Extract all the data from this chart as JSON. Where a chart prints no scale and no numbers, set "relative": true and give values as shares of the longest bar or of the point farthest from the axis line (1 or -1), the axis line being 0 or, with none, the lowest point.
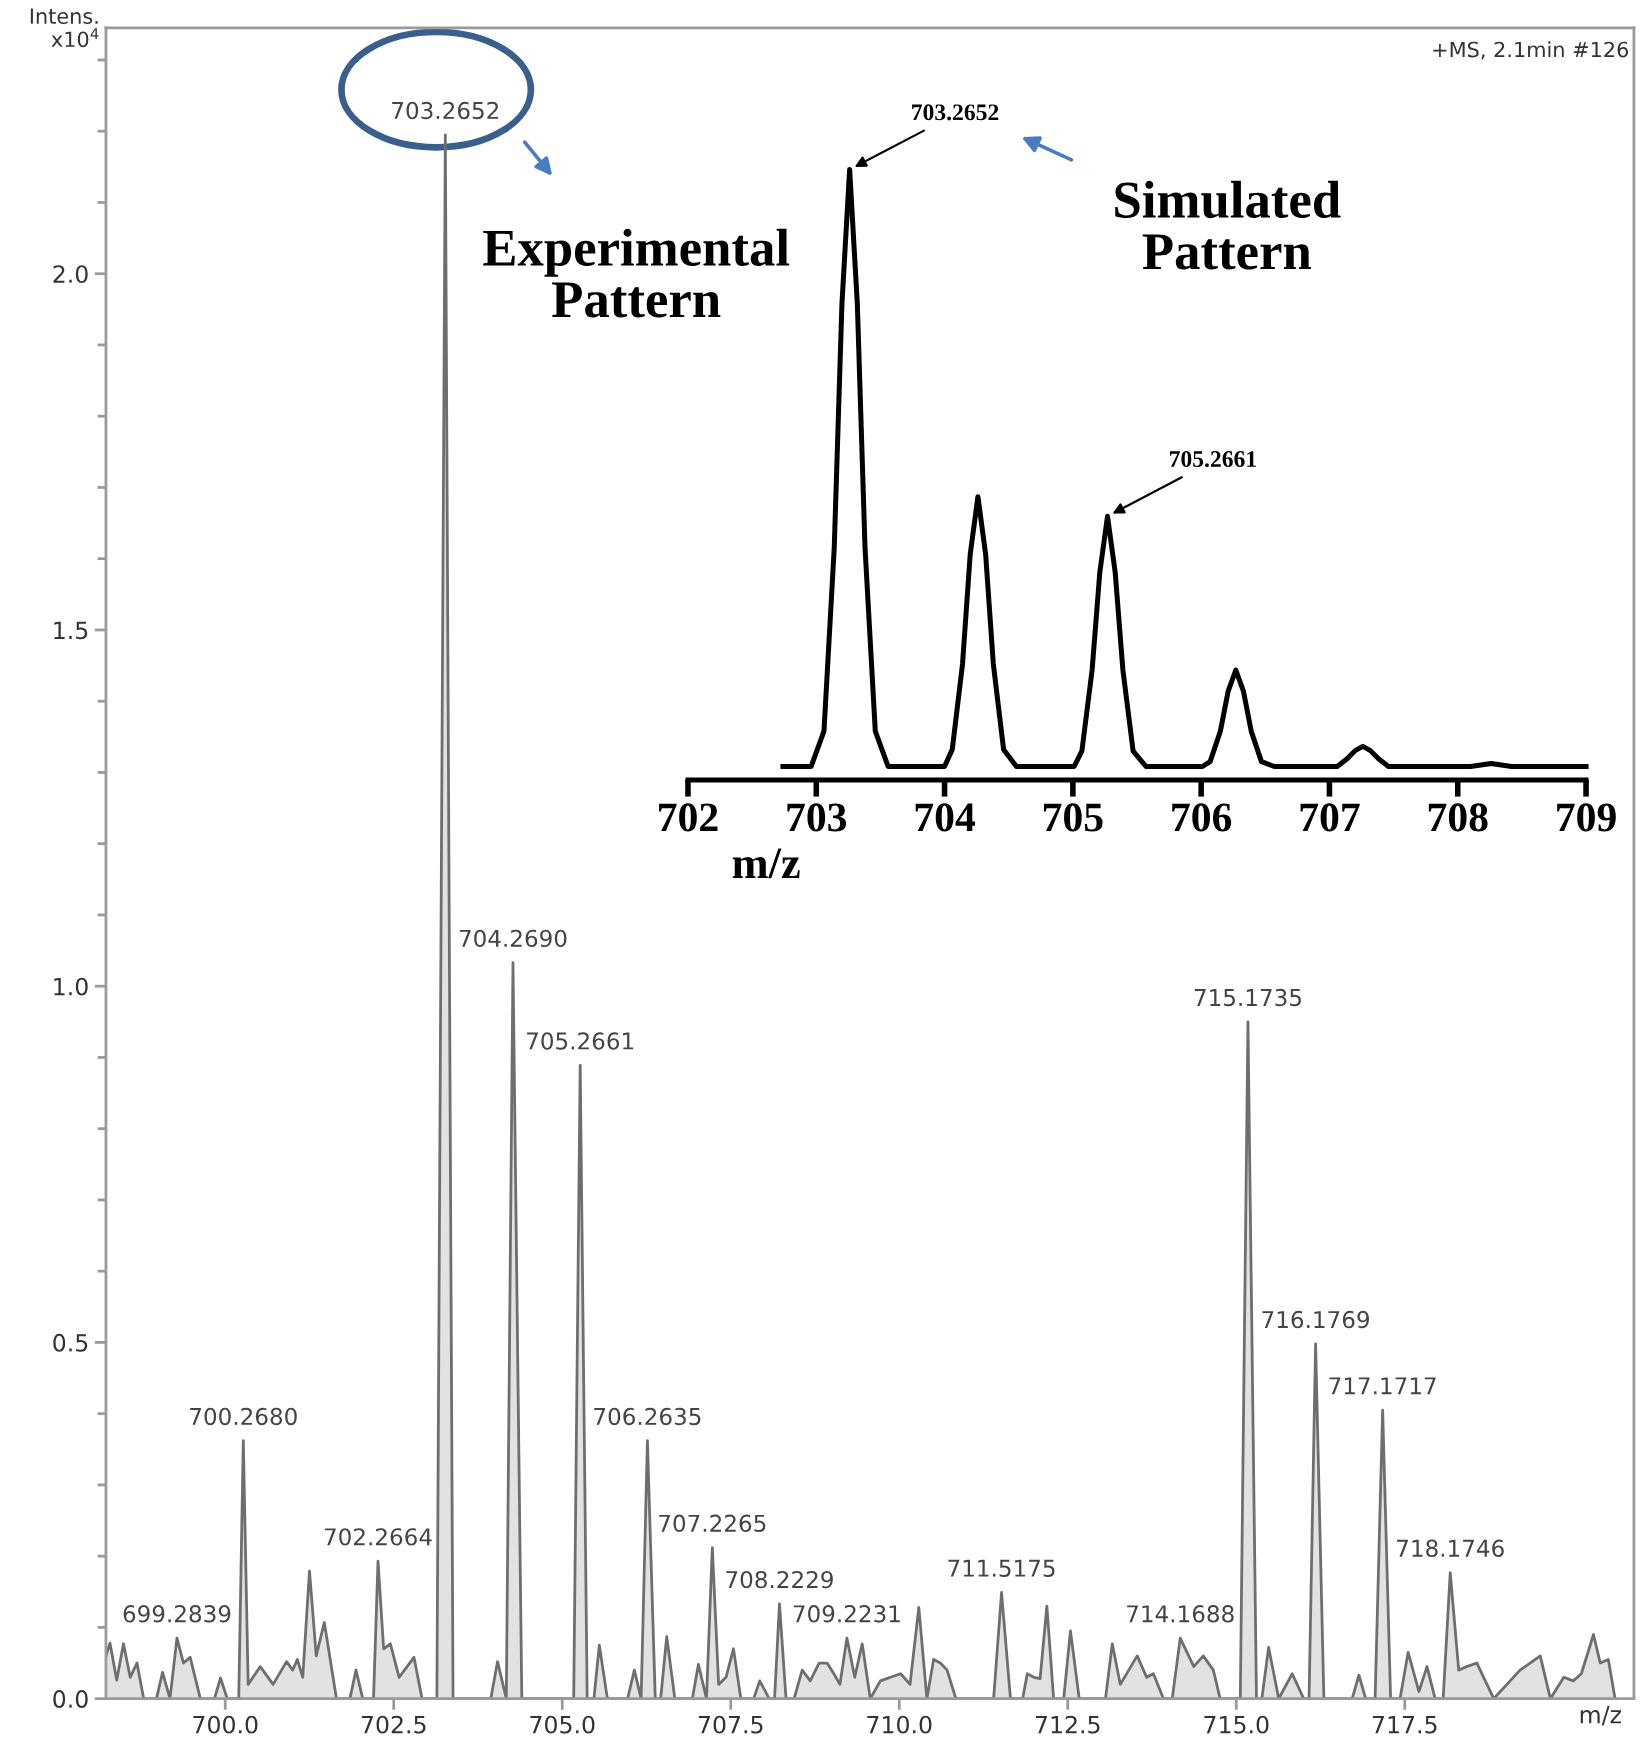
{
  "chart_data": [
    {
      "type": "area",
      "xlabel": "m/z",
      "ylabel": "Intens.\nx10$^{4}$",
      "xlim": [
        698.23,
        720.9
      ],
      "ylim": [
        0,
        2.345
      ],
      "xticks": [
        {
          "value": 700.0,
          "label": "700.0"
        },
        {
          "value": 702.5,
          "label": "702.5"
        },
        {
          "value": 705.0,
          "label": "705.0"
        },
        {
          "value": 707.5,
          "label": "707.5"
        },
        {
          "value": 710.0,
          "label": "710.0"
        },
        {
          "value": 712.5,
          "label": "712.5"
        },
        {
          "value": 715.0,
          "label": "715.0"
        },
        {
          "value": 717.5,
          "label": "717.5"
        }
      ],
      "yticks": [
        {
          "value": 0.0,
          "label": "0.0"
        },
        {
          "value": 0.1,
          "label": null
        },
        {
          "value": 0.2,
          "label": null
        },
        {
          "value": 0.3,
          "label": null
        },
        {
          "value": 0.4,
          "label": null
        },
        {
          "value": 0.5,
          "label": "0.5"
        },
        {
          "value": 0.6,
          "label": null
        },
        {
          "value": 0.7,
          "label": null
        },
        {
          "value": 0.8,
          "label": null
        },
        {
          "value": 0.9,
          "label": null
        },
        {
          "value": 1.0,
          "label": "1.0"
        },
        {
          "value": 1.1,
          "label": null
        },
        {
          "value": 1.2,
          "label": null
        },
        {
          "value": 1.3,
          "label": null
        },
        {
          "value": 1.4,
          "label": null
        },
        {
          "value": 1.5,
          "label": "1.5"
        },
        {
          "value": 1.6,
          "label": null
        },
        {
          "value": 1.7,
          "label": null
        },
        {
          "value": 1.8,
          "label": null
        },
        {
          "value": 1.9,
          "label": null
        },
        {
          "value": 2.0,
          "label": "2.0"
        },
        {
          "value": 2.1,
          "label": null
        },
        {
          "value": 2.2,
          "label": null
        },
        {
          "value": 2.3,
          "label": null
        }
      ],
      "series": [
        {
          "color": "#6e6e6e",
          "x": [
            698.23,
            698.29,
            698.39,
            698.49,
            698.59,
            698.69,
            698.79,
            698.98,
            699.07,
            699.18,
            699.2839,
            699.38,
            699.48,
            699.63,
            699.84,
            699.93,
            700.03,
            700.2,
            700.268,
            700.34,
            700.52,
            700.71,
            700.91,
            701.0,
            701.07,
            701.15,
            701.25,
            701.35,
            701.47,
            701.65,
            701.85,
            701.94,
            702.04,
            702.2,
            702.2664,
            702.35,
            702.45,
            702.58,
            702.8,
            702.92,
            703.14,
            703.2652,
            703.38,
            703.94,
            704.04,
            704.17,
            704.269,
            704.4,
            705.17,
            705.2661,
            705.37,
            705.47,
            705.55,
            705.67,
            705.97,
            706.07,
            706.17,
            706.2635,
            706.38,
            706.46,
            706.55,
            706.67,
            706.93,
            707.02,
            707.14,
            707.2265,
            707.32,
            707.43,
            707.54,
            707.65,
            707.84,
            707.93,
            708.07,
            708.15,
            708.2229,
            708.32,
            708.44,
            708.56,
            708.68,
            708.81,
            708.93,
            709.03,
            709.12,
            709.2231,
            709.34,
            709.45,
            709.57,
            709.72,
            709.87,
            710.02,
            710.16,
            710.29,
            710.41,
            710.51,
            710.61,
            710.71,
            710.84,
            711.4,
            711.5175,
            711.65,
            711.83,
            711.9,
            712.0,
            712.09,
            712.19,
            712.29,
            712.44,
            712.54,
            712.67,
            713.06,
            713.16,
            713.28,
            713.53,
            713.67,
            713.77,
            713.92,
            714.05,
            714.1688,
            714.37,
            714.51,
            714.66,
            714.76,
            715.06,
            715.1735,
            715.3,
            715.38,
            715.48,
            715.63,
            715.83,
            716.0,
            716.08,
            716.1769,
            716.3,
            716.72,
            716.82,
            716.92,
            717.06,
            717.1717,
            717.29,
            717.43,
            717.55,
            717.71,
            717.83,
            717.95,
            718.07,
            718.1746,
            718.3,
            718.42,
            718.57,
            718.82,
            719.21,
            719.36,
            719.51,
            719.66,
            719.86,
            720.0,
            720.12,
            720.3,
            720.4,
            720.52,
            720.62
          ],
          "values": [
            0.06,
            0.078,
            0.026,
            0.077,
            0.03,
            0.05,
            0,
            0,
            0.037,
            0,
            0.085,
            0.05,
            0.058,
            0,
            0,
            0.029,
            0,
            0,
            0.362,
            0.02,
            0.045,
            0.02,
            0.052,
            0.04,
            0.055,
            0.03,
            0.179,
            0.06,
            0.107,
            0,
            0,
            0.04,
            0,
            0,
            0.193,
            0.07,
            0.077,
            0.03,
            0.058,
            0,
            0,
            2.195,
            0,
            0,
            0.052,
            0,
            1.033,
            0,
            0,
            0.889,
            0,
            0,
            0.075,
            0,
            0,
            0.04,
            0,
            0.362,
            0,
            0,
            0.087,
            0,
            0,
            0.048,
            0,
            0.212,
            0.02,
            0.03,
            0.07,
            0,
            0,
            0.025,
            0,
            0,
            0.133,
            0,
            0,
            0.04,
            0.025,
            0.05,
            0.05,
            0.035,
            0.02,
            0.085,
            0.03,
            0.077,
            0,
            0.025,
            0.03,
            0.035,
            0.02,
            0.128,
            0,
            0.055,
            0.05,
            0.04,
            0,
            0,
            0.149,
            0,
            0,
            0.035,
            0.03,
            0.028,
            0.13,
            0,
            0,
            0.095,
            0,
            0,
            0.077,
            0.02,
            0.06,
            0.03,
            0.035,
            0,
            0,
            0.085,
            0.045,
            0.06,
            0.04,
            0,
            0,
            0.95,
            0,
            0,
            0.072,
            0,
            0.035,
            0,
            0,
            0.498,
            0,
            0,
            0.033,
            0,
            0,
            0.405,
            0,
            0,
            0.065,
            0.01,
            0.045,
            0,
            0,
            0.177,
            0.04,
            0.045,
            0.05,
            0,
            0.04,
            0.05,
            0.06,
            0,
            0.03,
            0.025,
            0.035,
            0.09,
            0.05,
            0.055,
            0
          ]
        }
      ],
      "annotations": [
        {
          "text": "703.2652",
          "x": 703.2652,
          "y": 2.195
        },
        {
          "text": "704.2690",
          "x": 704.269,
          "y": 1.033
        },
        {
          "text": "705.2661",
          "x": 705.2661,
          "y": 0.889
        },
        {
          "text": "700.2680",
          "x": 700.268,
          "y": 0.362
        },
        {
          "text": "702.2664",
          "x": 702.2664,
          "y": 0.193
        },
        {
          "text": "699.2839",
          "x": 699.2839,
          "y": 0.085
        },
        {
          "text": "706.2635",
          "x": 706.2635,
          "y": 0.362
        },
        {
          "text": "707.2265",
          "x": 707.2265,
          "y": 0.212
        },
        {
          "text": "708.2229",
          "x": 708.2229,
          "y": 0.133
        },
        {
          "text": "709.2231",
          "x": 709.2231,
          "y": 0.085
        },
        {
          "text": "711.5175",
          "x": 711.5175,
          "y": 0.149
        },
        {
          "text": "714.1688",
          "x": 714.1688,
          "y": 0.085
        },
        {
          "text": "715.1735",
          "x": 715.1735,
          "y": 0.95
        },
        {
          "text": "716.1769",
          "x": 716.1769,
          "y": 0.498
        },
        {
          "text": "717.1717",
          "x": 717.1717,
          "y": 0.405
        },
        {
          "text": "718.1746",
          "x": 718.1746,
          "y": 0.177
        },
        "+MS, 2.1min #126",
        "Experimental\nPattern"
      ]
    },
    {
      "type": "line",
      "relative": true,
      "xlabel": "m/z",
      "xlim": [
        702,
        709
      ],
      "xticks": [
        702,
        703,
        704,
        705,
        706,
        707,
        708,
        709
      ],
      "series": [
        {
          "color": "#000000",
          "x": [
            702.74,
            702.96,
            703.06,
            703.14,
            703.2,
            703.26,
            703.32,
            703.38,
            703.46,
            703.56,
            704.0,
            704.06,
            704.14,
            704.2,
            704.26,
            704.32,
            704.38,
            704.46,
            704.56,
            705.01,
            705.07,
            705.15,
            705.21,
            705.27,
            705.33,
            705.39,
            705.47,
            705.57,
            706.01,
            706.07,
            706.15,
            706.21,
            706.27,
            706.33,
            706.39,
            706.47,
            706.57,
            707.06,
            707.14,
            707.2,
            707.26,
            707.32,
            707.38,
            707.46,
            708.1,
            708.26,
            708.42,
            709.0
          ],
          "values": [
            0.022,
            0.022,
            0.08,
            0.38,
            0.78,
            1.0,
            0.78,
            0.38,
            0.08,
            0.022,
            0.022,
            0.05,
            0.19,
            0.37,
            0.464,
            0.37,
            0.19,
            0.05,
            0.022,
            0.022,
            0.047,
            0.18,
            0.34,
            0.432,
            0.34,
            0.18,
            0.047,
            0.022,
            0.022,
            0.03,
            0.08,
            0.145,
            0.18,
            0.145,
            0.08,
            0.03,
            0.022,
            0.022,
            0.035,
            0.048,
            0.055,
            0.048,
            0.035,
            0.022,
            0.022,
            0.027,
            0.022,
            0.022
          ]
        }
      ],
      "annotations": [
        {
          "text": "703.2652",
          "x": 703.26,
          "y": 1.0
        },
        {
          "text": "705.2661",
          "x": 705.27,
          "y": 0.432
        },
        "Simulated\nPattern"
      ]
    }
  ]
}
